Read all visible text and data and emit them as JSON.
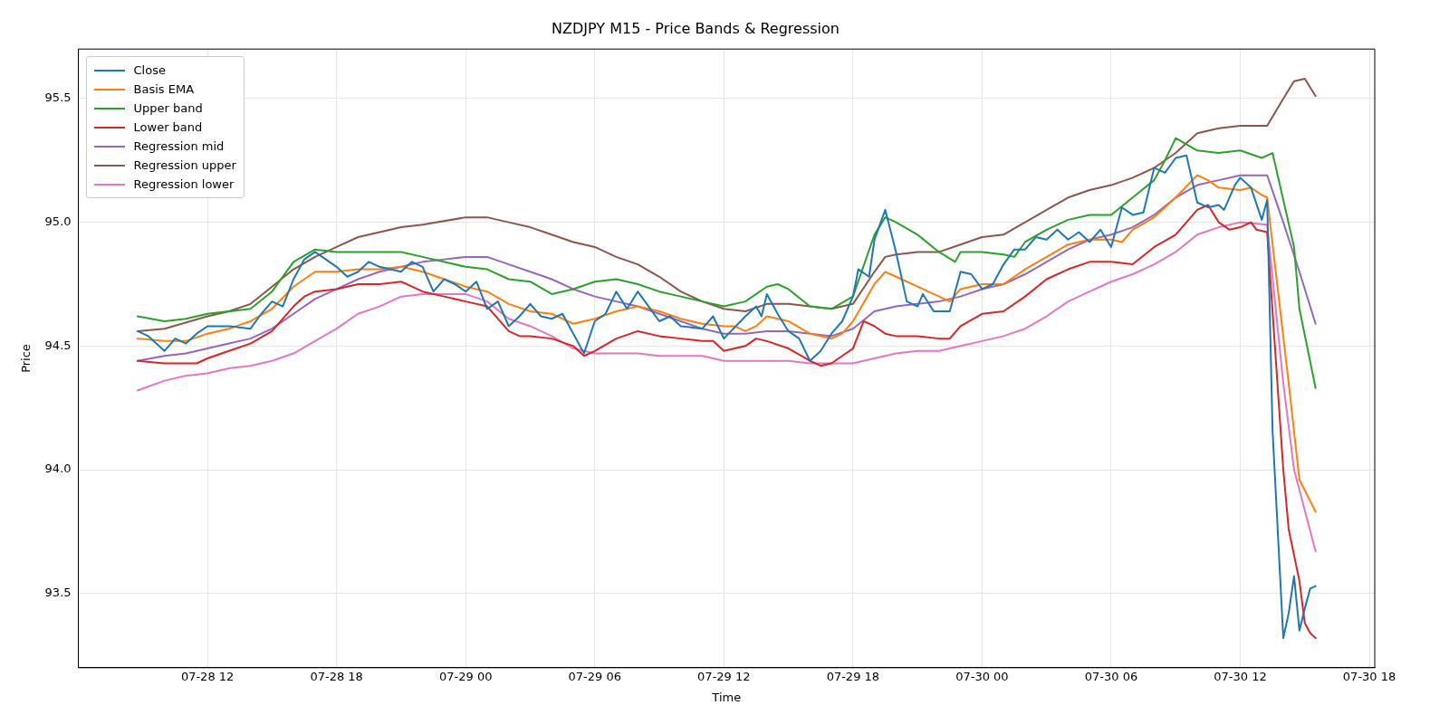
{
  "chart_data": {
    "type": "line",
    "title": "NZDJPY M15 - Price Bands & Regression",
    "xlabel": "Time",
    "ylabel": "Price",
    "xlim": [
      "--07-28T06:00",
      "--07-30T18:15"
    ],
    "xticks": [
      {
        "value": "--07-28T12:00",
        "label": "07-28 12"
      },
      {
        "value": "--07-28T18:00",
        "label": "07-28 18"
      },
      {
        "value": "--07-29T00:00",
        "label": "07-29 00"
      },
      {
        "value": "--07-29T06:00",
        "label": "07-29 06"
      },
      {
        "value": "--07-29T12:00",
        "label": "07-29 12"
      },
      {
        "value": "--07-29T18:00",
        "label": "07-29 18"
      },
      {
        "value": "--07-30T00:00",
        "label": "07-30 00"
      },
      {
        "value": "--07-30T06:00",
        "label": "07-30 06"
      },
      {
        "value": "--07-30T12:00",
        "label": "07-30 12"
      },
      {
        "value": "--07-30T18:00",
        "label": "07-30 18"
      }
    ],
    "ylim": [
      93.2,
      95.7
    ],
    "yticks": [
      93.5,
      {
        "value": 94,
        "label": "94.0"
      },
      94.5,
      {
        "value": 95,
        "label": "95.0"
      },
      95.5
    ],
    "grid": true,
    "legend": "top left",
    "line_style": "solid",
    "marker": "none",
    "series": [
      {
        "name": "Close",
        "color": "#1f77b4",
        "x": [
          "--07-28T08:45",
          "--07-28T09:15",
          "--07-28T10:00",
          "--07-28T10:30",
          "--07-28T11:00",
          "--07-28T11:30",
          "--07-28T12:00",
          "--07-28T13:00",
          "--07-28T14:00",
          "--07-28T14:30",
          "--07-28T15:00",
          "--07-28T15:30",
          "--07-28T16:00",
          "--07-28T16:30",
          "--07-28T17:00",
          "--07-28T17:30",
          "--07-28T18:00",
          "--07-28T18:30",
          "--07-28T19:00",
          "--07-28T19:30",
          "--07-28T20:00",
          "--07-28T21:00",
          "--07-28T21:30",
          "--07-28T22:00",
          "--07-28T22:30",
          "--07-28T23:00",
          "--07-28T23:30",
          "--07-29T00:00",
          "--07-29T00:30",
          "--07-29T01:00",
          "--07-29T01:30",
          "--07-29T02:00",
          "--07-29T02:30",
          "--07-29T03:00",
          "--07-29T03:30",
          "--07-29T04:00",
          "--07-29T04:30",
          "--07-29T05:30",
          "--07-29T06:00",
          "--07-29T06:30",
          "--07-29T07:00",
          "--07-29T07:30",
          "--07-29T08:00",
          "--07-29T08:15",
          "--07-29T09:00",
          "--07-29T09:30",
          "--07-29T10:00",
          "--07-29T11:00",
          "--07-29T11:30",
          "--07-29T12:00",
          "--07-29T13:00",
          "--07-29T13:30",
          "--07-29T13:45",
          "--07-29T14:00",
          "--07-29T14:30",
          "--07-29T15:00",
          "--07-29T15:30",
          "--07-29T16:00",
          "--07-29T16:30",
          "--07-29T17:00",
          "--07-29T17:30",
          "--07-29T18:00",
          "--07-29T18:15",
          "--07-29T18:45",
          "--07-29T19:00",
          "--07-29T19:30",
          "--07-29T20:00",
          "--07-29T20:30",
          "--07-29T21:00",
          "--07-29T21:15",
          "--07-29T21:45",
          "--07-29T22:30",
          "--07-29T23:00",
          "--07-29T23:30",
          "--07-30T00:00",
          "--07-30T00:30",
          "--07-30T01:00",
          "--07-30T01:30",
          "--07-30T02:00",
          "--07-30T02:30",
          "--07-30T03:00",
          "--07-30T03:30",
          "--07-30T04:00",
          "--07-30T04:30",
          "--07-30T05:00",
          "--07-30T05:30",
          "--07-30T06:00",
          "--07-30T06:30",
          "--07-30T07:00",
          "--07-30T07:30",
          "--07-30T08:00",
          "--07-30T08:30",
          "--07-30T09:00",
          "--07-30T09:30",
          "--07-30T10:00",
          "--07-30T10:30",
          "--07-30T11:00",
          "--07-30T11:15",
          "--07-30T11:45",
          "--07-30T12:00",
          "--07-30T12:30",
          "--07-30T13:00",
          "--07-30T13:15",
          "--07-30T13:30",
          "--07-30T14:00",
          "--07-30T14:15",
          "--07-30T14:30",
          "--07-30T14:45",
          "--07-30T15:00",
          "--07-30T15:15",
          "--07-30T15:30"
        ],
        "values": [
          94.56,
          94.54,
          94.48,
          94.53,
          94.51,
          94.55,
          94.58,
          94.58,
          94.57,
          94.63,
          94.68,
          94.66,
          94.77,
          94.85,
          94.88,
          94.85,
          94.82,
          94.78,
          94.8,
          94.84,
          94.82,
          94.8,
          94.84,
          94.82,
          94.72,
          94.77,
          94.75,
          94.72,
          94.76,
          94.65,
          94.68,
          94.58,
          94.62,
          94.67,
          94.62,
          94.61,
          94.63,
          94.47,
          94.6,
          94.63,
          94.72,
          94.65,
          94.72,
          94.69,
          94.6,
          94.62,
          94.58,
          94.57,
          94.62,
          94.53,
          94.62,
          94.66,
          94.62,
          94.71,
          94.63,
          94.56,
          94.53,
          94.44,
          94.48,
          94.55,
          94.6,
          94.7,
          94.81,
          94.78,
          94.93,
          95.05,
          94.88,
          94.68,
          94.66,
          94.71,
          94.64,
          94.64,
          94.8,
          94.79,
          94.73,
          94.75,
          94.83,
          94.89,
          94.89,
          94.94,
          94.93,
          94.97,
          94.93,
          94.96,
          94.92,
          94.97,
          94.9,
          95.06,
          95.03,
          95.04,
          95.22,
          95.2,
          95.26,
          95.27,
          95.08,
          95.06,
          95.07,
          95.05,
          95.15,
          95.18,
          95.14,
          95.01,
          95.09,
          94.16,
          93.32,
          93.42,
          93.57,
          93.35,
          93.44,
          93.52,
          93.53
        ]
      },
      {
        "name": "Basis EMA",
        "color": "#ff7f0e",
        "x": [
          "--07-28T08:45",
          "--07-28T10:00",
          "--07-28T11:00",
          "--07-28T12:00",
          "--07-28T13:00",
          "--07-28T14:00",
          "--07-28T15:00",
          "--07-28T16:00",
          "--07-28T17:00",
          "--07-28T18:00",
          "--07-28T19:00",
          "--07-28T20:00",
          "--07-28T21:00",
          "--07-28T22:00",
          "--07-28T23:00",
          "--07-29T00:00",
          "--07-29T01:00",
          "--07-29T02:00",
          "--07-29T03:00",
          "--07-29T04:00",
          "--07-29T05:00",
          "--07-29T06:00",
          "--07-29T07:00",
          "--07-29T08:00",
          "--07-29T09:00",
          "--07-29T10:00",
          "--07-29T11:00",
          "--07-29T12:00",
          "--07-29T12:30",
          "--07-29T13:00",
          "--07-29T13:30",
          "--07-29T14:00",
          "--07-29T15:00",
          "--07-29T16:00",
          "--07-29T17:00",
          "--07-29T17:30",
          "--07-29T18:00",
          "--07-29T19:00",
          "--07-29T19:30",
          "--07-29T20:00",
          "--07-29T21:00",
          "--07-29T22:00",
          "--07-29T22:30",
          "--07-29T23:00",
          "--07-30T00:00",
          "--07-30T01:00",
          "--07-30T02:00",
          "--07-30T03:00",
          "--07-30T04:00",
          "--07-30T05:00",
          "--07-30T06:00",
          "--07-30T06:30",
          "--07-30T07:00",
          "--07-30T08:00",
          "--07-30T09:00",
          "--07-30T10:00",
          "--07-30T10:30",
          "--07-30T11:00",
          "--07-30T12:00",
          "--07-30T12:30",
          "--07-30T13:00",
          "--07-30T13:15",
          "--07-30T14:15",
          "--07-30T14:45",
          "--07-30T15:30"
        ],
        "values": [
          94.53,
          94.52,
          94.52,
          94.55,
          94.57,
          94.6,
          94.65,
          94.74,
          94.8,
          94.8,
          94.81,
          94.81,
          94.82,
          94.8,
          94.77,
          94.74,
          94.72,
          94.67,
          94.64,
          94.63,
          94.59,
          94.61,
          94.64,
          94.66,
          94.64,
          94.61,
          94.59,
          94.58,
          94.58,
          94.56,
          94.58,
          94.62,
          94.6,
          94.55,
          94.53,
          94.55,
          94.6,
          94.75,
          94.8,
          94.78,
          94.74,
          94.7,
          94.68,
          94.73,
          94.75,
          94.75,
          94.81,
          94.86,
          94.91,
          94.93,
          94.93,
          94.92,
          94.97,
          95.02,
          95.1,
          95.19,
          95.17,
          95.14,
          95.13,
          95.14,
          95.11,
          95.1,
          94.35,
          93.96,
          93.83
        ]
      },
      {
        "name": "Upper band",
        "color": "#2ca02c",
        "x": [
          "--07-28T08:45",
          "--07-28T10:00",
          "--07-28T11:00",
          "--07-28T12:00",
          "--07-28T13:00",
          "--07-28T14:00",
          "--07-28T15:00",
          "--07-28T16:00",
          "--07-28T17:00",
          "--07-28T18:00",
          "--07-28T20:00",
          "--07-28T21:00",
          "--07-28T22:00",
          "--07-29T00:00",
          "--07-29T01:00",
          "--07-29T02:00",
          "--07-29T03:00",
          "--07-29T04:00",
          "--07-29T05:00",
          "--07-29T06:00",
          "--07-29T07:00",
          "--07-29T08:00",
          "--07-29T09:00",
          "--07-29T10:00",
          "--07-29T11:00",
          "--07-29T12:00",
          "--07-29T13:00",
          "--07-29T14:00",
          "--07-29T14:30",
          "--07-29T15:00",
          "--07-29T16:00",
          "--07-29T17:00",
          "--07-29T18:00",
          "--07-29T19:00",
          "--07-29T19:30",
          "--07-29T20:00",
          "--07-29T21:00",
          "--07-29T22:00",
          "--07-29T22:45",
          "--07-29T23:00",
          "--07-30T00:00",
          "--07-30T01:00",
          "--07-30T01:30",
          "--07-30T02:00",
          "--07-30T03:00",
          "--07-30T04:00",
          "--07-30T05:00",
          "--07-30T06:00",
          "--07-30T07:00",
          "--07-30T08:00",
          "--07-30T08:30",
          "--07-30T09:00",
          "--07-30T10:00",
          "--07-30T11:00",
          "--07-30T12:00",
          "--07-30T13:00",
          "--07-30T13:30",
          "--07-30T14:30",
          "--07-30T14:45",
          "--07-30T15:30"
        ],
        "values": [
          94.62,
          94.6,
          94.61,
          94.63,
          94.64,
          94.65,
          94.72,
          94.84,
          94.89,
          94.88,
          94.88,
          94.88,
          94.86,
          94.82,
          94.81,
          94.77,
          94.76,
          94.71,
          94.73,
          94.76,
          94.77,
          94.75,
          94.72,
          94.7,
          94.68,
          94.66,
          94.68,
          94.74,
          94.75,
          94.73,
          94.66,
          94.65,
          94.7,
          94.95,
          95.02,
          95,
          94.95,
          94.88,
          94.84,
          94.88,
          94.88,
          94.87,
          94.86,
          94.92,
          94.97,
          95.01,
          95.03,
          95.03,
          95.1,
          95.17,
          95.25,
          95.34,
          95.29,
          95.28,
          95.29,
          95.26,
          95.28,
          94.9,
          94.65,
          94.33
        ]
      },
      {
        "name": "Lower band",
        "color": "#d62728",
        "x": [
          "--07-28T08:45",
          "--07-28T10:00",
          "--07-28T11:00",
          "--07-28T11:30",
          "--07-28T12:00",
          "--07-28T13:00",
          "--07-28T14:00",
          "--07-28T15:00",
          "--07-28T16:00",
          "--07-28T16:30",
          "--07-28T17:00",
          "--07-28T18:00",
          "--07-28T19:00",
          "--07-28T20:00",
          "--07-28T21:00",
          "--07-28T21:30",
          "--07-28T22:00",
          "--07-28T23:00",
          "--07-29T00:00",
          "--07-29T01:00",
          "--07-29T02:00",
          "--07-29T02:30",
          "--07-29T03:00",
          "--07-29T04:00",
          "--07-29T05:00",
          "--07-29T05:30",
          "--07-29T06:00",
          "--07-29T07:00",
          "--07-29T08:00",
          "--07-29T09:00",
          "--07-29T10:00",
          "--07-29T11:00",
          "--07-29T11:30",
          "--07-29T12:00",
          "--07-29T13:00",
          "--07-29T13:30",
          "--07-29T14:00",
          "--07-29T15:00",
          "--07-29T16:00",
          "--07-29T16:30",
          "--07-29T17:00",
          "--07-29T17:30",
          "--07-29T18:00",
          "--07-29T18:30",
          "--07-29T19:00",
          "--07-29T19:30",
          "--07-29T20:00",
          "--07-29T21:00",
          "--07-29T22:00",
          "--07-29T22:30",
          "--07-29T23:00",
          "--07-30T00:00",
          "--07-30T01:00",
          "--07-30T02:00",
          "--07-30T03:00",
          "--07-30T04:00",
          "--07-30T05:00",
          "--07-30T06:00",
          "--07-30T07:00",
          "--07-30T08:00",
          "--07-30T09:00",
          "--07-30T10:00",
          "--07-30T10:30",
          "--07-30T11:00",
          "--07-30T11:30",
          "--07-30T12:00",
          "--07-30T12:30",
          "--07-30T12:45",
          "--07-30T13:15",
          "--07-30T14:00",
          "--07-30T14:15",
          "--07-30T14:45",
          "--07-30T15:00",
          "--07-30T15:15",
          "--07-30T15:30"
        ],
        "values": [
          94.44,
          94.43,
          94.43,
          94.43,
          94.45,
          94.48,
          94.51,
          94.56,
          94.66,
          94.7,
          94.72,
          94.73,
          94.75,
          94.75,
          94.76,
          94.74,
          94.72,
          94.7,
          94.68,
          94.66,
          94.56,
          94.54,
          94.54,
          94.53,
          94.5,
          94.46,
          94.48,
          94.53,
          94.56,
          94.54,
          94.53,
          94.52,
          94.52,
          94.48,
          94.5,
          94.53,
          94.52,
          94.49,
          94.44,
          94.42,
          94.43,
          94.46,
          94.49,
          94.6,
          94.58,
          94.55,
          94.54,
          94.54,
          94.53,
          94.53,
          94.58,
          94.63,
          94.64,
          94.7,
          94.77,
          94.81,
          94.84,
          94.84,
          94.83,
          94.9,
          94.95,
          95.05,
          95.07,
          95,
          94.97,
          94.98,
          95,
          94.97,
          94.96,
          94,
          93.76,
          93.55,
          93.38,
          93.34,
          93.32
        ]
      },
      {
        "name": "Regression mid",
        "color": "#9467bd",
        "x": [
          "--07-28T08:45",
          "--07-28T10:00",
          "--07-28T11:00",
          "--07-28T12:00",
          "--07-28T13:00",
          "--07-28T14:00",
          "--07-28T15:00",
          "--07-28T16:00",
          "--07-28T17:00",
          "--07-28T18:00",
          "--07-28T19:00",
          "--07-28T20:00",
          "--07-28T21:00",
          "--07-28T22:00",
          "--07-28T23:00",
          "--07-29T00:00",
          "--07-29T01:00",
          "--07-29T02:00",
          "--07-29T03:00",
          "--07-29T04:00",
          "--07-29T05:00",
          "--07-29T06:00",
          "--07-29T07:00",
          "--07-29T08:00",
          "--07-29T09:00",
          "--07-29T10:00",
          "--07-29T11:00",
          "--07-29T12:00",
          "--07-29T13:00",
          "--07-29T14:00",
          "--07-29T15:00",
          "--07-29T16:00",
          "--07-29T17:00",
          "--07-29T18:00",
          "--07-29T19:00",
          "--07-29T20:00",
          "--07-29T21:00",
          "--07-29T22:00",
          "--07-29T23:00",
          "--07-30T00:00",
          "--07-30T01:00",
          "--07-30T02:00",
          "--07-30T03:00",
          "--07-30T04:00",
          "--07-30T05:00",
          "--07-30T06:00",
          "--07-30T07:00",
          "--07-30T08:00",
          "--07-30T09:00",
          "--07-30T10:00",
          "--07-30T11:00",
          "--07-30T12:00",
          "--07-30T13:15",
          "--07-30T14:00",
          "--07-30T14:45",
          "--07-30T15:30"
        ],
        "values": [
          94.44,
          94.46,
          94.47,
          94.49,
          94.51,
          94.53,
          94.57,
          94.63,
          94.69,
          94.73,
          94.77,
          94.8,
          94.82,
          94.84,
          94.85,
          94.86,
          94.86,
          94.83,
          94.8,
          94.77,
          94.73,
          94.7,
          94.68,
          94.66,
          94.63,
          94.6,
          94.57,
          94.55,
          94.55,
          94.56,
          94.56,
          94.55,
          94.54,
          94.57,
          94.64,
          94.66,
          94.67,
          94.68,
          94.7,
          94.73,
          94.75,
          94.79,
          94.84,
          94.89,
          94.93,
          94.95,
          94.98,
          95.03,
          95.1,
          95.15,
          95.17,
          95.19,
          95.19,
          95,
          94.8,
          94.59
        ]
      },
      {
        "name": "Regression upper",
        "color": "#8c564b",
        "x": [
          "--07-28T08:45",
          "--07-28T10:00",
          "--07-28T12:00",
          "--07-28T13:00",
          "--07-28T14:00",
          "--07-28T15:00",
          "--07-28T16:00",
          "--07-28T17:00",
          "--07-28T18:00",
          "--07-28T19:00",
          "--07-28T20:00",
          "--07-28T21:00",
          "--07-28T22:00",
          "--07-29T00:00",
          "--07-29T01:00",
          "--07-29T02:00",
          "--07-29T03:00",
          "--07-29T04:00",
          "--07-29T05:00",
          "--07-29T06:00",
          "--07-29T07:00",
          "--07-29T08:00",
          "--07-29T09:00",
          "--07-29T10:00",
          "--07-29T11:00",
          "--07-29T12:00",
          "--07-29T13:00",
          "--07-29T14:00",
          "--07-29T15:00",
          "--07-29T16:00",
          "--07-29T17:00",
          "--07-29T18:00",
          "--07-29T19:00",
          "--07-29T19:30",
          "--07-29T20:00",
          "--07-29T21:00",
          "--07-29T22:00",
          "--07-29T23:00",
          "--07-30T00:00",
          "--07-30T01:00",
          "--07-30T02:00",
          "--07-30T03:00",
          "--07-30T04:00",
          "--07-30T05:00",
          "--07-30T06:00",
          "--07-30T07:00",
          "--07-30T08:00",
          "--07-30T09:00",
          "--07-30T10:00",
          "--07-30T11:00",
          "--07-30T12:00",
          "--07-30T13:15",
          "--07-30T14:00",
          "--07-30T14:30",
          "--07-30T15:00",
          "--07-30T15:30"
        ],
        "values": [
          94.56,
          94.57,
          94.62,
          94.64,
          94.67,
          94.74,
          94.81,
          94.86,
          94.9,
          94.94,
          94.96,
          94.98,
          94.99,
          95.02,
          95.02,
          95,
          94.98,
          94.95,
          94.92,
          94.9,
          94.86,
          94.83,
          94.78,
          94.72,
          94.68,
          94.65,
          94.64,
          94.67,
          94.67,
          94.66,
          94.65,
          94.67,
          94.8,
          94.86,
          94.87,
          94.88,
          94.88,
          94.91,
          94.94,
          94.95,
          95,
          95.05,
          95.1,
          95.13,
          95.15,
          95.18,
          95.22,
          95.28,
          95.36,
          95.38,
          95.39,
          95.39,
          95.5,
          95.57,
          95.58,
          95.51
        ]
      },
      {
        "name": "Regression lower",
        "color": "#e377c2",
        "x": [
          "--07-28T08:45",
          "--07-28T10:00",
          "--07-28T11:00",
          "--07-28T12:00",
          "--07-28T13:00",
          "--07-28T14:00",
          "--07-28T15:00",
          "--07-28T16:00",
          "--07-28T17:00",
          "--07-28T18:00",
          "--07-28T19:00",
          "--07-28T20:00",
          "--07-28T21:00",
          "--07-28T22:00",
          "--07-28T23:00",
          "--07-29T00:00",
          "--07-29T01:00",
          "--07-29T02:00",
          "--07-29T03:00",
          "--07-29T04:00",
          "--07-29T05:00",
          "--07-29T06:00",
          "--07-29T07:00",
          "--07-29T08:00",
          "--07-29T09:00",
          "--07-29T10:00",
          "--07-29T11:00",
          "--07-29T12:00",
          "--07-29T13:00",
          "--07-29T14:00",
          "--07-29T15:00",
          "--07-29T16:00",
          "--07-29T17:00",
          "--07-29T18:00",
          "--07-29T19:00",
          "--07-29T20:00",
          "--07-29T21:00",
          "--07-29T22:00",
          "--07-29T23:00",
          "--07-30T00:00",
          "--07-30T01:00",
          "--07-30T02:00",
          "--07-30T03:00",
          "--07-30T04:00",
          "--07-30T05:00",
          "--07-30T06:00",
          "--07-30T07:00",
          "--07-30T08:00",
          "--07-30T09:00",
          "--07-30T10:00",
          "--07-30T11:00",
          "--07-30T12:00",
          "--07-30T13:15",
          "--07-30T14:00",
          "--07-30T14:30",
          "--07-30T15:30"
        ],
        "values": [
          94.32,
          94.36,
          94.38,
          94.39,
          94.41,
          94.42,
          94.44,
          94.47,
          94.52,
          94.57,
          94.63,
          94.66,
          94.7,
          94.71,
          94.71,
          94.71,
          94.68,
          94.61,
          94.58,
          94.54,
          94.49,
          94.47,
          94.47,
          94.47,
          94.46,
          94.46,
          94.46,
          94.44,
          94.44,
          94.44,
          94.44,
          94.43,
          94.43,
          94.43,
          94.45,
          94.47,
          94.48,
          94.48,
          94.5,
          94.52,
          94.54,
          94.57,
          94.62,
          94.68,
          94.72,
          94.76,
          94.79,
          94.83,
          94.88,
          94.95,
          94.98,
          95,
          94.99,
          94.35,
          94,
          93.67
        ]
      }
    ]
  }
}
